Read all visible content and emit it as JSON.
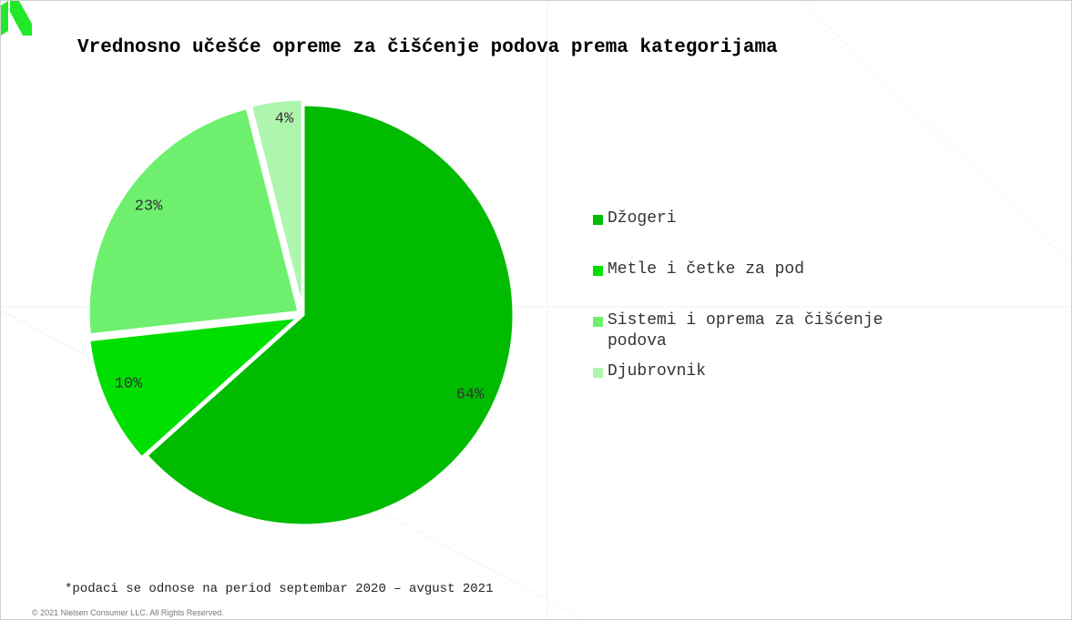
{
  "title": "Vrednosno učešće opreme za čišćenje podova prema kategorijama",
  "footnote": "*podaci se odnose na period septembar 2020 – avgust 2021",
  "copyright": "© 2021 Nielsen Consumer LLC. All Rights Reserved.",
  "brand_color": "#22e82a",
  "legend": [
    {
      "label": "Džogeri",
      "color": "#00bb00"
    },
    {
      "label": "Metle i četke za pod",
      "color": "#00e000"
    },
    {
      "label": "Sistemi i oprema za čišćenje podova",
      "color": "#6ef06e"
    },
    {
      "label": "Djubrovnik",
      "color": "#aef5ae"
    }
  ],
  "chart_data": {
    "type": "pie",
    "title": "Vrednosno učešće opreme za čišćenje podova prema kategorijama",
    "categories": [
      "Džogeri",
      "Metle i četke za pod",
      "Sistemi i oprema za čišćenje podova",
      "Djubrovnik"
    ],
    "values": [
      64,
      10,
      23,
      4
    ],
    "labels": [
      "64%",
      "10%",
      "23%",
      "4%"
    ],
    "colors": [
      "#00bb00",
      "#00e000",
      "#6ef06e",
      "#aef5ae"
    ],
    "legend_position": "right"
  }
}
